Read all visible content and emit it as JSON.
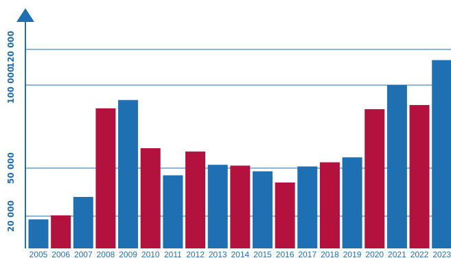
{
  "colors": {
    "axis": "#1f6fb3",
    "grid": "#1f6fb3",
    "blue": "#1f6fb3",
    "red": "#b3123e",
    "tick_text": "#1f6fb3"
  },
  "chart_data": {
    "type": "bar",
    "title": "",
    "xlabel": "",
    "ylabel": "",
    "y_tick_labels": [
      "20 000",
      "50 000",
      "100 000",
      "120 000"
    ],
    "y_tick_values": [
      20000,
      50000,
      100000,
      120000
    ],
    "grid": true,
    "categories": [
      "2005",
      "2006",
      "2007",
      "2008",
      "2009",
      "2010",
      "2011",
      "2012",
      "2013",
      "2014",
      "2015",
      "2016",
      "2017",
      "2018",
      "2019",
      "2020",
      "2021",
      "2022",
      "2023"
    ],
    "values": [
      18000,
      20500,
      32000,
      86000,
      91000,
      62000,
      45500,
      60000,
      52000,
      51500,
      48000,
      41000,
      51000,
      53500,
      56500,
      85500,
      100000,
      88000,
      114000
    ],
    "bar_colors": [
      "blue",
      "red",
      "blue",
      "red",
      "blue",
      "red",
      "blue",
      "red",
      "blue",
      "red",
      "blue",
      "red",
      "blue",
      "red",
      "blue",
      "red",
      "blue",
      "red",
      "blue"
    ]
  }
}
